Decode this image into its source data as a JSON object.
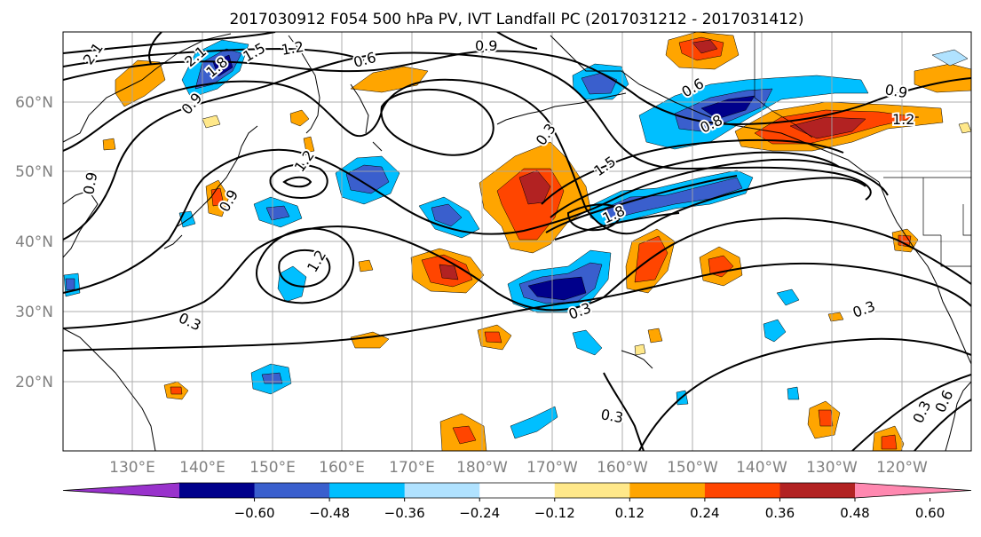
{
  "map": {
    "title": "2017030912 F054 500 hPa PV, IVT Landfall PC (2017031212 - 2017031412)",
    "lat_labels": [
      "60°N",
      "50°N",
      "40°N",
      "30°N",
      "20°N"
    ],
    "lon_labels": [
      "130°E",
      "140°E",
      "150°E",
      "160°E",
      "170°E",
      "180°W",
      "170°W",
      "160°W",
      "150°W",
      "140°W",
      "130°W",
      "120°W"
    ],
    "contour_labels": [
      {
        "text": "2.1"
      },
      {
        "text": "2.1"
      },
      {
        "text": "1.8"
      },
      {
        "text": "1.5"
      },
      {
        "text": "1.2"
      },
      {
        "text": "0.9"
      },
      {
        "text": "0.9"
      },
      {
        "text": "0.6"
      },
      {
        "text": "0.9"
      },
      {
        "text": "0.9"
      },
      {
        "text": "0.3"
      },
      {
        "text": "1.5"
      },
      {
        "text": "1.8"
      },
      {
        "text": "0.6"
      },
      {
        "text": "0.8"
      },
      {
        "text": "1.2"
      },
      {
        "text": "0.9"
      },
      {
        "text": "1.2"
      },
      {
        "text": "1.2"
      },
      {
        "text": "0.3"
      },
      {
        "text": "0.3"
      },
      {
        "text": "0.3"
      },
      {
        "text": "0.3"
      },
      {
        "text": "0.3"
      },
      {
        "text": "0.6"
      }
    ],
    "colors": {
      "axis_label": "#808080",
      "grid": "#a6a6a6",
      "contour": "#000000"
    }
  },
  "colorbar": {
    "ticks": [
      "−0.60",
      "−0.48",
      "−0.36",
      "−0.24",
      "−0.12",
      "0.12",
      "0.24",
      "0.36",
      "0.48",
      "0.60"
    ],
    "colors": [
      "#9932cc",
      "#00008b",
      "#3a5fcd",
      "#00bfff",
      "#b0e2ff",
      "#ffffff",
      "#ffe88a",
      "#ffa500",
      "#ff4500",
      "#b22222",
      "#ff88b0"
    ]
  }
}
